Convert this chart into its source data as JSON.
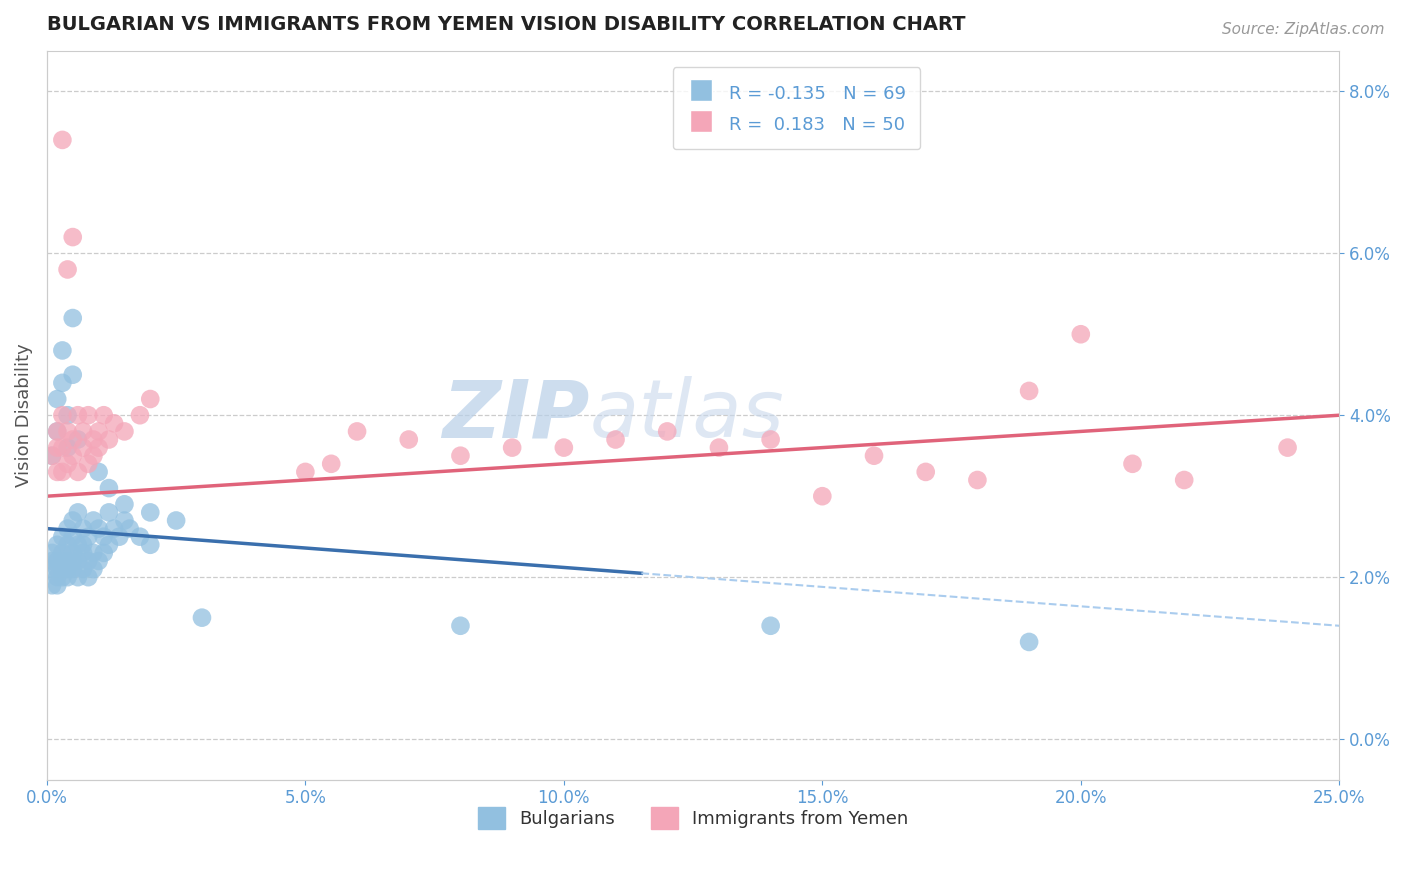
{
  "title": "BULGARIAN VS IMMIGRANTS FROM YEMEN VISION DISABILITY CORRELATION CHART",
  "source": "Source: ZipAtlas.com",
  "ylabel": "Vision Disability",
  "xlim": [
    0.0,
    0.25
  ],
  "ylim": [
    -0.005,
    0.085
  ],
  "blue_R": "-0.135",
  "blue_N": "69",
  "pink_R": "0.183",
  "pink_N": "50",
  "blue_color": "#92c0e0",
  "pink_color": "#f4a6b8",
  "blue_line_color": "#3a6fad",
  "pink_line_color": "#e0637a",
  "blue_scatter": [
    [
      0.001,
      0.022
    ],
    [
      0.001,
      0.019
    ],
    [
      0.001,
      0.021
    ],
    [
      0.001,
      0.023
    ],
    [
      0.002,
      0.024
    ],
    [
      0.002,
      0.02
    ],
    [
      0.002,
      0.022
    ],
    [
      0.002,
      0.021
    ],
    [
      0.002,
      0.019
    ],
    [
      0.003,
      0.025
    ],
    [
      0.003,
      0.022
    ],
    [
      0.003,
      0.02
    ],
    [
      0.003,
      0.023
    ],
    [
      0.003,
      0.021
    ],
    [
      0.004,
      0.026
    ],
    [
      0.004,
      0.022
    ],
    [
      0.004,
      0.02
    ],
    [
      0.004,
      0.024
    ],
    [
      0.004,
      0.021
    ],
    [
      0.005,
      0.027
    ],
    [
      0.005,
      0.023
    ],
    [
      0.005,
      0.021
    ],
    [
      0.005,
      0.025
    ],
    [
      0.005,
      0.022
    ],
    [
      0.006,
      0.028
    ],
    [
      0.006,
      0.024
    ],
    [
      0.006,
      0.022
    ],
    [
      0.006,
      0.02
    ],
    [
      0.007,
      0.026
    ],
    [
      0.007,
      0.023
    ],
    [
      0.007,
      0.021
    ],
    [
      0.007,
      0.024
    ],
    [
      0.008,
      0.025
    ],
    [
      0.008,
      0.022
    ],
    [
      0.008,
      0.02
    ],
    [
      0.009,
      0.027
    ],
    [
      0.009,
      0.023
    ],
    [
      0.009,
      0.021
    ],
    [
      0.01,
      0.026
    ],
    [
      0.01,
      0.022
    ],
    [
      0.011,
      0.025
    ],
    [
      0.011,
      0.023
    ],
    [
      0.012,
      0.028
    ],
    [
      0.012,
      0.024
    ],
    [
      0.013,
      0.026
    ],
    [
      0.014,
      0.025
    ],
    [
      0.015,
      0.027
    ],
    [
      0.016,
      0.026
    ],
    [
      0.018,
      0.025
    ],
    [
      0.02,
      0.024
    ],
    [
      0.001,
      0.035
    ],
    [
      0.002,
      0.038
    ],
    [
      0.002,
      0.042
    ],
    [
      0.003,
      0.048
    ],
    [
      0.003,
      0.044
    ],
    [
      0.004,
      0.04
    ],
    [
      0.004,
      0.036
    ],
    [
      0.005,
      0.052
    ],
    [
      0.005,
      0.045
    ],
    [
      0.006,
      0.037
    ],
    [
      0.01,
      0.033
    ],
    [
      0.012,
      0.031
    ],
    [
      0.015,
      0.029
    ],
    [
      0.02,
      0.028
    ],
    [
      0.025,
      0.027
    ],
    [
      0.03,
      0.015
    ],
    [
      0.08,
      0.014
    ],
    [
      0.14,
      0.014
    ],
    [
      0.19,
      0.012
    ]
  ],
  "pink_scatter": [
    [
      0.001,
      0.035
    ],
    [
      0.002,
      0.038
    ],
    [
      0.002,
      0.033
    ],
    [
      0.003,
      0.036
    ],
    [
      0.003,
      0.04
    ],
    [
      0.004,
      0.034
    ],
    [
      0.004,
      0.038
    ],
    [
      0.005,
      0.035
    ],
    [
      0.005,
      0.037
    ],
    [
      0.006,
      0.04
    ],
    [
      0.006,
      0.033
    ],
    [
      0.007,
      0.036
    ],
    [
      0.007,
      0.038
    ],
    [
      0.008,
      0.034
    ],
    [
      0.008,
      0.04
    ],
    [
      0.009,
      0.035
    ],
    [
      0.009,
      0.037
    ],
    [
      0.01,
      0.038
    ],
    [
      0.01,
      0.036
    ],
    [
      0.011,
      0.04
    ],
    [
      0.012,
      0.037
    ],
    [
      0.013,
      0.039
    ],
    [
      0.015,
      0.038
    ],
    [
      0.018,
      0.04
    ],
    [
      0.02,
      0.042
    ],
    [
      0.003,
      0.074
    ],
    [
      0.004,
      0.058
    ],
    [
      0.005,
      0.062
    ],
    [
      0.05,
      0.033
    ],
    [
      0.055,
      0.034
    ],
    [
      0.1,
      0.036
    ],
    [
      0.11,
      0.037
    ],
    [
      0.13,
      0.036
    ],
    [
      0.15,
      0.03
    ],
    [
      0.16,
      0.035
    ],
    [
      0.17,
      0.033
    ],
    [
      0.18,
      0.032
    ],
    [
      0.2,
      0.05
    ],
    [
      0.21,
      0.034
    ],
    [
      0.22,
      0.032
    ],
    [
      0.24,
      0.036
    ],
    [
      0.002,
      0.036
    ],
    [
      0.003,
      0.033
    ],
    [
      0.06,
      0.038
    ],
    [
      0.07,
      0.037
    ],
    [
      0.08,
      0.035
    ],
    [
      0.09,
      0.036
    ],
    [
      0.12,
      0.038
    ],
    [
      0.14,
      0.037
    ],
    [
      0.19,
      0.043
    ]
  ],
  "blue_trend_x": [
    0.0,
    0.25
  ],
  "blue_trend_y": [
    0.026,
    0.014
  ],
  "blue_trend_solid_end": 0.115,
  "pink_trend_x": [
    0.0,
    0.25
  ],
  "pink_trend_y": [
    0.03,
    0.04
  ],
  "watermark_zip": "ZIP",
  "watermark_atlas": "atlas",
  "background_color": "#ffffff",
  "grid_color": "#cccccc",
  "title_color": "#222222",
  "axis_tick_color": "#5b9bd5",
  "legend_label1": "Bulgarians",
  "legend_label2": "Immigrants from Yemen",
  "yticks": [
    0.0,
    0.02,
    0.04,
    0.06,
    0.08
  ],
  "xticks": [
    0.0,
    0.05,
    0.1,
    0.15,
    0.2,
    0.25
  ]
}
